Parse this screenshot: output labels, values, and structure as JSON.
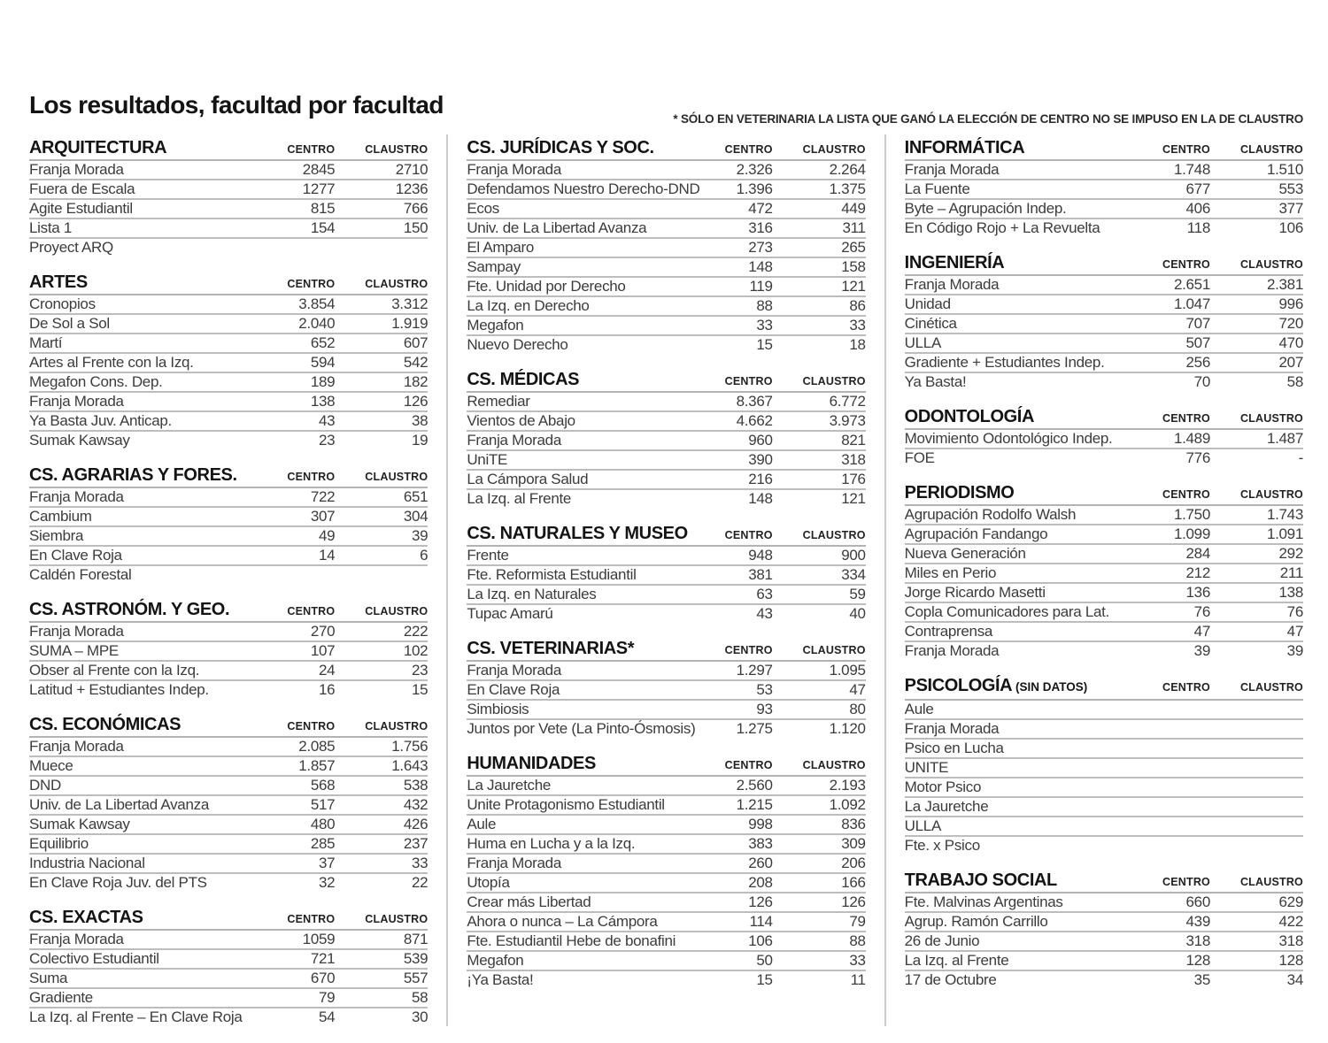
{
  "page": {
    "title": "Los resultados, facultad por facultad",
    "note": "* SÓLO EN VETERINARIA LA LISTA QUE GANÓ LA ELECCIÓN DE CENTRO NO SE IMPUSO EN LA DE CLAUSTRO"
  },
  "colors": {
    "text": "#3c3c3c",
    "heading": "#141414",
    "rule": "#bdbdbd",
    "divider": "#cccccc",
    "background": "#ffffff"
  },
  "table": {
    "value_headers": [
      "CENTRO",
      "CLAUSTRO"
    ],
    "columns": [
      {
        "sections": [
          {
            "title": "ARQUITECTURA",
            "rows": [
              [
                "Franja Morada",
                "2845",
                "2710"
              ],
              [
                "Fuera de Escala",
                "1277",
                "1236"
              ],
              [
                "Agite Estudiantil",
                "815",
                "766"
              ],
              [
                "Lista 1",
                "154",
                "150"
              ],
              [
                "Proyect ARQ",
                "",
                ""
              ]
            ]
          },
          {
            "title": "ARTES",
            "rows": [
              [
                "Cronopios",
                "3.854",
                "3.312"
              ],
              [
                "De Sol a Sol",
                "2.040",
                "1.919"
              ],
              [
                "Martí",
                "652",
                "607"
              ],
              [
                "Artes al Frente con la Izq.",
                "594",
                "542"
              ],
              [
                "Megafon Cons. Dep.",
                "189",
                "182"
              ],
              [
                "Franja Morada",
                "138",
                "126"
              ],
              [
                "Ya Basta Juv. Anticap.",
                "43",
                "38"
              ],
              [
                "Sumak Kawsay",
                "23",
                "19"
              ]
            ]
          },
          {
            "title": "CS. AGRARIAS Y FORES.",
            "rows": [
              [
                "Franja Morada",
                "722",
                "651"
              ],
              [
                "Cambium",
                "307",
                "304"
              ],
              [
                "Siembra",
                "49",
                "39"
              ],
              [
                "En Clave Roja",
                "14",
                "6"
              ],
              [
                "Caldén Forestal",
                "",
                ""
              ]
            ]
          },
          {
            "title": "CS. ASTRONÓM. Y GEO.",
            "rows": [
              [
                "Franja Morada",
                "270",
                "222"
              ],
              [
                "SUMA – MPE",
                "107",
                "102"
              ],
              [
                "Obser al Frente con la Izq.",
                "24",
                "23"
              ],
              [
                "Latitud + Estudiantes Indep.",
                "16",
                "15"
              ]
            ]
          },
          {
            "title": "CS. ECONÓMICAS",
            "rows": [
              [
                "Franja Morada",
                "2.085",
                "1.756"
              ],
              [
                "Muece",
                "1.857",
                "1.643"
              ],
              [
                "DND",
                "568",
                "538"
              ],
              [
                "Univ. de La Libertad Avanza",
                "517",
                "432"
              ],
              [
                "Sumak Kawsay",
                "480",
                "426"
              ],
              [
                "Equilibrio",
                "285",
                "237"
              ],
              [
                "Industria Nacional",
                "37",
                "33"
              ],
              [
                "En Clave Roja Juv. del PTS",
                "32",
                "22"
              ]
            ]
          },
          {
            "title": "CS. EXACTAS",
            "rows": [
              [
                "Franja Morada",
                "1059",
                "871"
              ],
              [
                "Colectivo Estudiantil",
                "721",
                "539"
              ],
              [
                "Suma",
                "670",
                "557"
              ],
              [
                "Gradiente",
                "79",
                "58"
              ],
              [
                "La Izq. al Frente – En Clave Roja",
                "54",
                "30"
              ]
            ]
          }
        ]
      },
      {
        "sections": [
          {
            "title": "CS. JURÍDICAS Y SOC.",
            "rows": [
              [
                "Franja Morada",
                "2.326",
                "2.264"
              ],
              [
                "Defendamos Nuestro Derecho-DND",
                "1.396",
                "1.375"
              ],
              [
                "Ecos",
                "472",
                "449"
              ],
              [
                "Univ. de La Libertad Avanza",
                "316",
                "311"
              ],
              [
                "El Amparo",
                "273",
                "265"
              ],
              [
                "Sampay",
                "148",
                "158"
              ],
              [
                "Fte. Unidad por Derecho",
                "119",
                "121"
              ],
              [
                "La Izq. en Derecho",
                "88",
                "86"
              ],
              [
                "Megafon",
                "33",
                "33"
              ],
              [
                "Nuevo Derecho",
                "15",
                "18"
              ]
            ]
          },
          {
            "title": "CS. MÉDICAS",
            "rows": [
              [
                "Remediar",
                "8.367",
                "6.772"
              ],
              [
                "Vientos de Abajo",
                "4.662",
                "3.973"
              ],
              [
                "Franja Morada",
                "960",
                "821"
              ],
              [
                "UniTE",
                "390",
                "318"
              ],
              [
                "La Cámpora Salud",
                "216",
                "176"
              ],
              [
                "La Izq. al Frente",
                "148",
                "121"
              ]
            ]
          },
          {
            "title": "CS. NATURALES Y MUSEO",
            "rows": [
              [
                "Frente",
                "948",
                "900"
              ],
              [
                "Fte. Reformista Estudiantil",
                "381",
                "334"
              ],
              [
                "La Izq. en Naturales",
                "63",
                "59"
              ],
              [
                "Tupac Amarú",
                "43",
                "40"
              ]
            ]
          },
          {
            "title": "CS. VETERINARIAS*",
            "rows": [
              [
                "Franja Morada",
                "1.297",
                "1.095"
              ],
              [
                "En Clave Roja",
                "53",
                "47"
              ],
              [
                "Simbiosis",
                "93",
                "80"
              ],
              [
                "Juntos por Vete (La Pinto-Ósmosis)",
                "1.275",
                "1.120"
              ]
            ]
          },
          {
            "title": "HUMANIDADES",
            "rows": [
              [
                "La Jauretche",
                "2.560",
                "2.193"
              ],
              [
                "Unite Protagonismo Estudiantil",
                "1.215",
                "1.092"
              ],
              [
                "Aule",
                "998",
                "836"
              ],
              [
                "Huma en Lucha y a la Izq.",
                "383",
                "309"
              ],
              [
                "Franja Morada",
                "260",
                "206"
              ],
              [
                "Utopía",
                "208",
                "166"
              ],
              [
                "Crear más Libertad",
                "126",
                "126"
              ],
              [
                "Ahora o nunca – La Cámpora",
                "114",
                "79"
              ],
              [
                "Fte. Estudiantil Hebe de bonafini",
                "106",
                "88"
              ],
              [
                "Megafon",
                "50",
                "33"
              ],
              [
                "¡Ya Basta!",
                "15",
                "11"
              ]
            ]
          }
        ]
      },
      {
        "sections": [
          {
            "title": "INFORMÁTICA",
            "rows": [
              [
                "Franja Morada",
                "1.748",
                "1.510"
              ],
              [
                "La Fuente",
                "677",
                "553"
              ],
              [
                "Byte – Agrupación Indep.",
                "406",
                "377"
              ],
              [
                "En Código Rojo + La Revuelta",
                "118",
                "106"
              ]
            ]
          },
          {
            "title": "INGENIERÍA",
            "rows": [
              [
                "Franja Morada",
                "2.651",
                "2.381"
              ],
              [
                "Unidad",
                "1.047",
                "996"
              ],
              [
                "Cinética",
                "707",
                "720"
              ],
              [
                "ULLA",
                "507",
                "470"
              ],
              [
                "Gradiente + Estudiantes Indep.",
                "256",
                "207"
              ],
              [
                "Ya Basta!",
                "70",
                "58"
              ]
            ]
          },
          {
            "title": "ODONTOLOGÍA",
            "rows": [
              [
                "Movimiento Odontológico Indep.",
                "1.489",
                "1.487"
              ],
              [
                "FOE",
                "776",
                "-"
              ]
            ]
          },
          {
            "title": "PERIODISMO",
            "rows": [
              [
                "Agrupación Rodolfo Walsh",
                "1.750",
                "1.743"
              ],
              [
                "Agrupación Fandango",
                "1.099",
                "1.091"
              ],
              [
                "Nueva Generación",
                "284",
                "292"
              ],
              [
                "Miles en Perio",
                "212",
                "211"
              ],
              [
                "Jorge Ricardo Masetti",
                "136",
                "138"
              ],
              [
                "Copla Comunicadores para Lat.",
                "76",
                "76"
              ],
              [
                "Contraprensa",
                "47",
                "47"
              ],
              [
                "Franja Morada",
                "39",
                "39"
              ]
            ]
          },
          {
            "title": "PSICOLOGÍA",
            "suffix": "(SIN DATOS)",
            "rows": [
              [
                "Aule",
                "",
                ""
              ],
              [
                "Franja Morada",
                "",
                ""
              ],
              [
                "Psico en Lucha",
                "",
                ""
              ],
              [
                "UNITE",
                "",
                ""
              ],
              [
                "Motor Psico",
                "",
                ""
              ],
              [
                "La Jauretche",
                "",
                ""
              ],
              [
                "ULLA",
                "",
                ""
              ],
              [
                "Fte. x Psico",
                "",
                ""
              ]
            ]
          },
          {
            "title": "TRABAJO SOCIAL",
            "rows": [
              [
                "Fte. Malvinas Argentinas",
                "660",
                "629"
              ],
              [
                "Agrup. Ramón Carrillo",
                "439",
                "422"
              ],
              [
                "26 de Junio",
                "318",
                "318"
              ],
              [
                "La Izq. al Frente",
                "128",
                "128"
              ],
              [
                "17 de Octubre",
                "35",
                "34"
              ]
            ]
          }
        ]
      }
    ]
  }
}
